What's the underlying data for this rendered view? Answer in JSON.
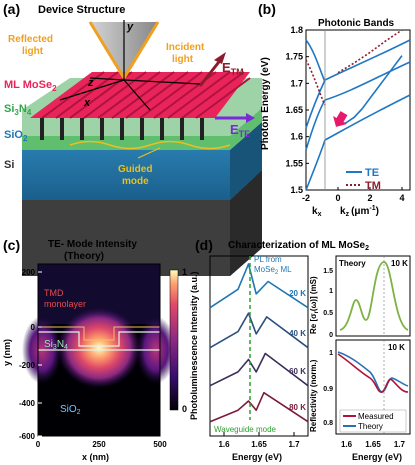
{
  "panel_a": {
    "label": "(a)",
    "title": "Device Structure",
    "reflected": "Reflected",
    "reflected2": "light",
    "incident": "Incident",
    "incident2": "light",
    "axis_y": "y",
    "axis_z": "z",
    "axis_x": "x",
    "etm": "E",
    "etm_sub": "TM",
    "ete": "E",
    "ete_sub": "TE",
    "layer_ml": "ML MoSe",
    "layer_ml_sub": "2",
    "layer_sin": "Si",
    "layer_sin_sub1": "3",
    "layer_sin_n": "N",
    "layer_sin_sub2": "4",
    "layer_sio": "SiO",
    "layer_sio_sub": "2",
    "layer_si": "Si",
    "guided": "Guided",
    "guided2": "mode"
  },
  "panel_b": {
    "label": "(b)",
    "title": "Photonic Bands",
    "ylabel": "Photon Energy (eV)",
    "xlabel_kx": "k",
    "xlabel_kx_sub": "x",
    "xlabel_kz": "k",
    "xlabel_kz_sub": "z",
    "xlabel_unit": "(μm",
    "xlabel_unit_sup": "-1",
    "xlabel_unit_end": ")",
    "yticks": [
      "1.5",
      "1.55",
      "1.6",
      "1.65",
      "1.7",
      "1.75",
      "1.8"
    ],
    "xticks": [
      "-2",
      "0",
      "2",
      "4"
    ],
    "legend": [
      "TE",
      "TM"
    ]
  },
  "panel_c": {
    "label": "(c)",
    "title": "TE- Mode Intensity",
    "subtitle": "(Theory)",
    "ylabel": "y (nm)",
    "xlabel": "x (nm)",
    "yticks": [
      "200",
      "0",
      "-200",
      "-400",
      "-600"
    ],
    "xticks": [
      "0",
      "250",
      "500"
    ],
    "cbar": [
      "1",
      "0"
    ],
    "tmd": "TMD",
    "tmd2": "monolayer",
    "sin": "Si",
    "sin_sub1": "3",
    "sin_n": "N",
    "sin_sub2": "4",
    "sio": "SiO",
    "sio_sub": "2"
  },
  "panel_d": {
    "label": "(d)",
    "title": "Characterization of ML MoSe",
    "title_sub": "2",
    "pl_ylabel": "Photoluminescence Intensity (a.u.)",
    "pl_annot1": "PL from",
    "pl_annot2": "MoSe",
    "pl_annot2_sub": "2",
    "pl_annot2_end": " ML",
    "wg": "Waveguide mode",
    "temps": [
      "20 K",
      "40 K",
      "60 K",
      "80 K"
    ],
    "xlabel": "Energy (eV)",
    "xticks": [
      "1.6",
      "1.65",
      "1.7"
    ],
    "theory": "Theory",
    "t10k": "10 K",
    "re_ylabel": "Re [σ",
    "re_ylabel_sub": "r",
    "re_ylabel_end": "(ω)] (mS)",
    "re_yticks": [
      "1.5",
      "1",
      "0.5",
      "0"
    ],
    "refl_ylabel": "Reflectivity (norm.)",
    "refl_yticks": [
      "1",
      "0.9",
      "0.8"
    ],
    "exp10k": "10 K",
    "legend": [
      "Measured",
      "Theory"
    ]
  },
  "colors": {
    "te": "#1f77c4",
    "tm": "#8c1c2c",
    "pl": [
      "#1f77b4",
      "#2c4f7c",
      "#3d2e5c",
      "#7a1b3a"
    ],
    "green": "#7cb342",
    "measured": "#b0123a",
    "theory_line": "#2b6fb4",
    "arrow": "#e8196b"
  },
  "chart_data": [
    {
      "type": "line",
      "title": "Photonic Bands",
      "ylabel": "Photon Energy (eV)",
      "ylim": [
        1.5,
        1.8
      ],
      "xlim": [
        -2,
        4.5
      ],
      "series": [
        {
          "name": "TE",
          "x": [
            0,
            0.5,
            1,
            1.5,
            2,
            3,
            4
          ],
          "y": [
            1.622,
            1.626,
            1.636,
            1.652,
            1.672,
            1.712,
            1.752
          ]
        },
        {
          "name": "TM",
          "x": [
            0,
            1,
            2,
            3,
            4
          ],
          "y": [
            1.72,
            1.738,
            1.758,
            1.78,
            1.8
          ]
        }
      ]
    },
    {
      "type": "line",
      "title": "Characterization of ML MoSe2",
      "xlabel": "Energy (eV)",
      "xlim": [
        1.58,
        1.72
      ],
      "series": [
        {
          "name": "20 K",
          "x": [
            1.58,
            1.62,
            1.635,
            1.646,
            1.663,
            1.72
          ],
          "y": [
            0.05,
            0.45,
            1.0,
            0.35,
            0.62,
            0.05
          ]
        },
        {
          "name": "40 K",
          "x": [
            1.58,
            1.62,
            1.635,
            1.646,
            1.661,
            1.72
          ],
          "y": [
            0.05,
            0.4,
            0.8,
            0.35,
            0.72,
            0.05
          ]
        },
        {
          "name": "60 K",
          "x": [
            1.58,
            1.62,
            1.635,
            1.646,
            1.659,
            1.72
          ],
          "y": [
            0.05,
            0.35,
            0.62,
            0.35,
            0.75,
            0.05
          ]
        },
        {
          "name": "80 K",
          "x": [
            1.58,
            1.62,
            1.635,
            1.646,
            1.657,
            1.72
          ],
          "y": [
            0.05,
            0.3,
            0.5,
            0.3,
            0.68,
            0.05
          ]
        }
      ]
    }
  ]
}
